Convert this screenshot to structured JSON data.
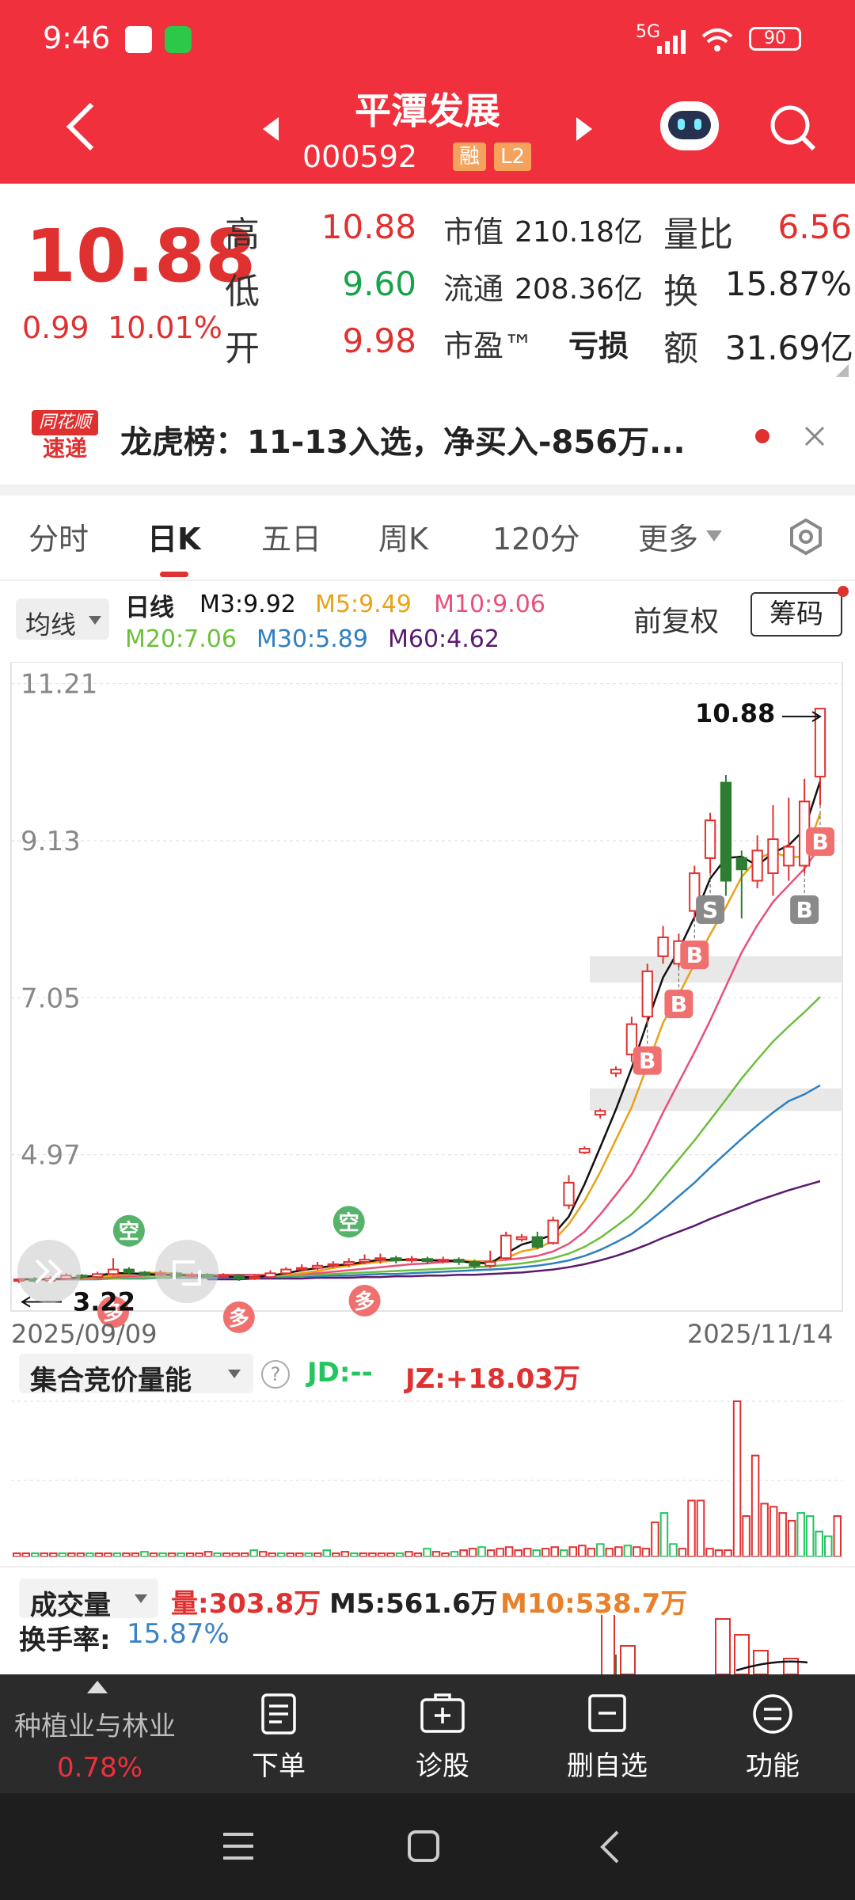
{
  "status_bar": {
    "time": "9:46",
    "network": "5G",
    "battery": "90"
  },
  "header": {
    "title": "平潭发展",
    "code": "000592",
    "badges": [
      "融",
      "L2"
    ]
  },
  "quote": {
    "price": "10.88",
    "change": "0.99",
    "change_pct": "10.01%",
    "high_label": "高",
    "high": "10.88",
    "low_label": "低",
    "low": "9.60",
    "open_label": "开",
    "open": "9.98",
    "mktcap_label": "市值",
    "mktcap": "210.18亿",
    "float_label": "流通",
    "float": "208.36亿",
    "pe_label": "市盈™",
    "pe": "亏损",
    "vol_ratio_label": "量比",
    "vol_ratio": "6.56",
    "turnover_label": "换",
    "turnover": "15.87%",
    "amount_label": "额",
    "amount": "31.69亿"
  },
  "news": {
    "logo_line1": "同花顺",
    "logo_line2": "速递",
    "text": "龙虎榜：11-13入选，净买入-856万..."
  },
  "tabs": [
    "分时",
    "日K",
    "五日",
    "周K",
    "120分",
    "更多"
  ],
  "active_tab": "日K",
  "ma": {
    "type_label": "均线",
    "period_label": "日线",
    "m3": "M3:9.92",
    "m5": "M5:9.49",
    "m10": "M10:9.06",
    "m20": "M20:7.06",
    "m30": "M30:5.89",
    "m60": "M60:4.62",
    "adjust_label": "前复权",
    "chips_label": "筹码"
  },
  "chart_data": {
    "type": "candlestick",
    "y_ticks": [
      "11.21",
      "9.13",
      "7.05",
      "4.97"
    ],
    "ylim": [
      2.9,
      11.5
    ],
    "x_start": "2025/09/09",
    "x_end": "2025/11/14",
    "max_label": "10.88",
    "min_label": "3.22",
    "candles": [
      [
        3.3,
        3.32,
        3.27,
        3.34
      ],
      [
        3.32,
        3.3,
        3.28,
        3.35
      ],
      [
        3.3,
        3.33,
        3.28,
        3.36
      ],
      [
        3.33,
        3.37,
        3.31,
        3.4
      ],
      [
        3.37,
        3.35,
        3.33,
        3.39
      ],
      [
        3.35,
        3.39,
        3.33,
        3.42
      ],
      [
        3.39,
        3.45,
        3.37,
        3.6
      ],
      [
        3.45,
        3.41,
        3.38,
        3.48
      ],
      [
        3.41,
        3.38,
        3.36,
        3.43
      ],
      [
        3.38,
        3.4,
        3.36,
        3.44
      ],
      [
        3.4,
        3.36,
        3.34,
        3.42
      ],
      [
        3.36,
        3.38,
        3.34,
        3.41
      ],
      [
        3.38,
        3.35,
        3.32,
        3.4
      ],
      [
        3.35,
        3.37,
        3.33,
        3.4
      ],
      [
        3.37,
        3.33,
        3.3,
        3.39
      ],
      [
        3.33,
        3.35,
        3.31,
        3.38
      ],
      [
        3.35,
        3.4,
        3.33,
        3.44
      ],
      [
        3.4,
        3.45,
        3.38,
        3.48
      ],
      [
        3.45,
        3.47,
        3.42,
        3.52
      ],
      [
        3.47,
        3.5,
        3.44,
        3.55
      ],
      [
        3.5,
        3.52,
        3.47,
        3.56
      ],
      [
        3.52,
        3.55,
        3.48,
        3.6
      ],
      [
        3.55,
        3.58,
        3.52,
        3.65
      ],
      [
        3.58,
        3.6,
        3.53,
        3.66
      ],
      [
        3.6,
        3.57,
        3.53,
        3.63
      ],
      [
        3.57,
        3.59,
        3.54,
        3.63
      ],
      [
        3.59,
        3.56,
        3.52,
        3.62
      ],
      [
        3.56,
        3.58,
        3.53,
        3.62
      ],
      [
        3.58,
        3.55,
        3.51,
        3.61
      ],
      [
        3.55,
        3.5,
        3.46,
        3.58
      ],
      [
        3.5,
        3.55,
        3.47,
        3.7
      ],
      [
        3.6,
        3.9,
        3.58,
        3.95
      ],
      [
        3.85,
        3.88,
        3.82,
        3.92
      ],
      [
        3.88,
        3.75,
        3.72,
        3.95
      ],
      [
        3.8,
        4.1,
        3.78,
        4.15
      ],
      [
        4.3,
        4.6,
        4.25,
        4.7
      ],
      [
        5.0,
        5.05,
        4.98,
        5.08
      ],
      [
        5.5,
        5.55,
        5.45,
        5.58
      ],
      [
        6.05,
        6.1,
        6.0,
        6.14
      ],
      [
        6.3,
        6.7,
        6.2,
        6.8
      ],
      [
        6.8,
        7.4,
        6.7,
        7.5
      ],
      [
        7.6,
        7.85,
        7.5,
        8.0
      ],
      [
        7.5,
        7.8,
        7.45,
        7.9
      ],
      [
        8.2,
        8.7,
        8.1,
        8.8
      ],
      [
        8.9,
        9.4,
        8.7,
        9.5
      ],
      [
        9.9,
        8.6,
        8.4,
        10.0
      ],
      [
        8.9,
        8.75,
        8.1,
        9.0
      ],
      [
        8.6,
        9.0,
        8.5,
        9.2
      ],
      [
        8.7,
        9.15,
        8.4,
        9.6
      ],
      [
        8.8,
        9.05,
        8.6,
        9.7
      ],
      [
        8.8,
        9.65,
        8.7,
        9.95
      ],
      [
        9.98,
        10.88,
        9.6,
        10.88
      ]
    ],
    "ma_lines": {
      "m3": [
        3.32,
        3.32,
        3.32,
        3.33,
        3.35,
        3.37,
        3.4,
        3.4,
        3.39,
        3.38,
        3.38,
        3.37,
        3.36,
        3.36,
        3.35,
        3.35,
        3.37,
        3.4,
        3.44,
        3.47,
        3.5,
        3.52,
        3.55,
        3.58,
        3.58,
        3.58,
        3.57,
        3.57,
        3.56,
        3.54,
        3.53,
        3.66,
        3.78,
        3.84,
        3.91,
        4.15,
        4.58,
        5.07,
        5.57,
        6.12,
        6.73,
        7.32,
        7.68,
        8.12,
        8.63,
        8.9,
        8.92,
        8.8,
        8.97,
        9.07,
        9.28,
        9.92
      ],
      "m5": [
        3.32,
        3.32,
        3.32,
        3.33,
        3.34,
        3.35,
        3.37,
        3.39,
        3.4,
        3.41,
        3.39,
        3.38,
        3.37,
        3.37,
        3.36,
        3.36,
        3.37,
        3.38,
        3.4,
        3.43,
        3.47,
        3.5,
        3.53,
        3.55,
        3.57,
        3.58,
        3.58,
        3.57,
        3.57,
        3.56,
        3.55,
        3.6,
        3.69,
        3.73,
        3.83,
        4.05,
        4.36,
        4.74,
        5.17,
        5.6,
        6.15,
        6.72,
        7.09,
        7.5,
        7.89,
        8.25,
        8.65,
        8.89,
        8.98,
        8.91,
        8.92,
        9.49
      ],
      "m10": [
        3.32,
        3.32,
        3.32,
        3.32,
        3.33,
        3.34,
        3.35,
        3.36,
        3.37,
        3.38,
        3.38,
        3.38,
        3.38,
        3.38,
        3.38,
        3.38,
        3.38,
        3.38,
        3.39,
        3.4,
        3.42,
        3.44,
        3.46,
        3.48,
        3.5,
        3.52,
        3.53,
        3.55,
        3.56,
        3.56,
        3.56,
        3.58,
        3.6,
        3.63,
        3.69,
        3.79,
        3.95,
        4.18,
        4.44,
        4.71,
        5.1,
        5.53,
        5.93,
        6.33,
        6.75,
        7.2,
        7.65,
        8.01,
        8.32,
        8.54,
        8.76,
        9.06
      ],
      "m20": [
        3.32,
        3.32,
        3.32,
        3.32,
        3.32,
        3.33,
        3.33,
        3.34,
        3.34,
        3.35,
        3.35,
        3.35,
        3.35,
        3.36,
        3.36,
        3.36,
        3.36,
        3.37,
        3.37,
        3.38,
        3.39,
        3.4,
        3.41,
        3.42,
        3.43,
        3.44,
        3.45,
        3.46,
        3.47,
        3.48,
        3.49,
        3.51,
        3.53,
        3.56,
        3.6,
        3.66,
        3.75,
        3.87,
        4.02,
        4.18,
        4.4,
        4.66,
        4.91,
        5.16,
        5.43,
        5.7,
        5.98,
        6.23,
        6.47,
        6.67,
        6.86,
        7.06
      ],
      "m30": [
        3.32,
        3.32,
        3.32,
        3.32,
        3.32,
        3.32,
        3.33,
        3.33,
        3.33,
        3.34,
        3.34,
        3.34,
        3.34,
        3.34,
        3.35,
        3.35,
        3.35,
        3.35,
        3.36,
        3.36,
        3.37,
        3.37,
        3.38,
        3.39,
        3.39,
        3.4,
        3.41,
        3.42,
        3.43,
        3.44,
        3.45,
        3.46,
        3.48,
        3.5,
        3.53,
        3.57,
        3.63,
        3.71,
        3.81,
        3.92,
        4.07,
        4.24,
        4.42,
        4.6,
        4.8,
        4.99,
        5.18,
        5.36,
        5.53,
        5.68,
        5.77,
        5.89
      ],
      "m60": [
        3.3,
        3.3,
        3.3,
        3.3,
        3.31,
        3.31,
        3.31,
        3.31,
        3.31,
        3.32,
        3.32,
        3.32,
        3.32,
        3.32,
        3.32,
        3.33,
        3.33,
        3.33,
        3.33,
        3.34,
        3.34,
        3.34,
        3.35,
        3.35,
        3.36,
        3.36,
        3.37,
        3.37,
        3.38,
        3.38,
        3.39,
        3.4,
        3.41,
        3.43,
        3.45,
        3.48,
        3.52,
        3.57,
        3.63,
        3.7,
        3.78,
        3.87,
        3.95,
        4.03,
        4.12,
        4.2,
        4.28,
        4.36,
        4.43,
        4.5,
        4.56,
        4.62
      ]
    },
    "markers": [
      {
        "label": "空",
        "i": 7,
        "pos": "above"
      },
      {
        "label": "多",
        "i": 6,
        "pos": "below"
      },
      {
        "label": "多",
        "i": 14,
        "pos": "below"
      },
      {
        "label": "空",
        "i": 21,
        "pos": "above"
      },
      {
        "label": "多",
        "i": 22,
        "pos": "below"
      },
      {
        "label": "B",
        "i": 40,
        "pos": "below"
      },
      {
        "label": "B",
        "i": 42,
        "pos": "below"
      },
      {
        "label": "B",
        "i": 43,
        "pos": "below"
      },
      {
        "label": "S",
        "i": 44,
        "pos": "below"
      },
      {
        "label": "B",
        "i": 50,
        "pos": "below"
      },
      {
        "label": "B",
        "i": 51,
        "pos": "below"
      }
    ],
    "auction_volume": [
      [
        0.02,
        "r"
      ],
      [
        0.02,
        "r"
      ],
      [
        0.02,
        "g"
      ],
      [
        0.02,
        "r"
      ],
      [
        0.02,
        "r"
      ],
      [
        0.02,
        "g"
      ],
      [
        0.02,
        "r"
      ],
      [
        0.02,
        "r"
      ],
      [
        0.02,
        "g"
      ],
      [
        0.02,
        "r"
      ],
      [
        0.02,
        "r"
      ],
      [
        0.02,
        "g"
      ],
      [
        0.02,
        "r"
      ],
      [
        0.02,
        "r"
      ],
      [
        0.03,
        "g"
      ],
      [
        0.02,
        "r"
      ],
      [
        0.02,
        "g"
      ],
      [
        0.02,
        "r"
      ],
      [
        0.02,
        "g"
      ],
      [
        0.02,
        "r"
      ],
      [
        0.02,
        "r"
      ],
      [
        0.03,
        "r"
      ],
      [
        0.02,
        "g"
      ],
      [
        0.02,
        "r"
      ],
      [
        0.02,
        "r"
      ],
      [
        0.02,
        "r"
      ],
      [
        0.04,
        "g"
      ],
      [
        0.03,
        "r"
      ],
      [
        0.02,
        "r"
      ],
      [
        0.02,
        "g"
      ],
      [
        0.02,
        "r"
      ],
      [
        0.02,
        "r"
      ],
      [
        0.02,
        "g"
      ],
      [
        0.02,
        "r"
      ],
      [
        0.04,
        "g"
      ],
      [
        0.02,
        "r"
      ],
      [
        0.03,
        "r"
      ],
      [
        0.02,
        "g"
      ],
      [
        0.02,
        "r"
      ],
      [
        0.02,
        "r"
      ],
      [
        0.02,
        "r"
      ],
      [
        0.02,
        "r"
      ],
      [
        0.02,
        "g"
      ],
      [
        0.03,
        "r"
      ],
      [
        0.02,
        "r"
      ],
      [
        0.05,
        "g"
      ],
      [
        0.03,
        "r"
      ],
      [
        0.02,
        "r"
      ],
      [
        0.03,
        "g"
      ],
      [
        0.04,
        "r"
      ],
      [
        0.05,
        "r"
      ],
      [
        0.06,
        "g"
      ],
      [
        0.04,
        "r"
      ],
      [
        0.05,
        "r"
      ],
      [
        0.06,
        "r"
      ],
      [
        0.04,
        "r"
      ],
      [
        0.05,
        "r"
      ],
      [
        0.04,
        "g"
      ],
      [
        0.05,
        "r"
      ],
      [
        0.06,
        "r"
      ],
      [
        0.04,
        "g"
      ],
      [
        0.06,
        "r"
      ],
      [
        0.07,
        "r"
      ],
      [
        0.05,
        "r"
      ],
      [
        0.08,
        "g"
      ],
      [
        0.05,
        "r"
      ],
      [
        0.06,
        "r"
      ],
      [
        0.07,
        "g"
      ],
      [
        0.06,
        "r"
      ],
      [
        0.05,
        "r"
      ],
      [
        0.22,
        "r"
      ],
      [
        0.28,
        "g"
      ],
      [
        0.08,
        "g"
      ],
      [
        0.05,
        "r"
      ],
      [
        0.36,
        "r"
      ],
      [
        0.36,
        "r"
      ],
      [
        0.05,
        "r"
      ],
      [
        0.04,
        "r"
      ],
      [
        0.04,
        "r"
      ],
      [
        1.0,
        "r"
      ],
      [
        0.26,
        "r"
      ],
      [
        0.65,
        "r"
      ],
      [
        0.34,
        "r"
      ],
      [
        0.32,
        "r"
      ],
      [
        0.28,
        "r"
      ],
      [
        0.23,
        "r"
      ],
      [
        0.28,
        "g"
      ],
      [
        0.26,
        "g"
      ],
      [
        0.16,
        "g"
      ],
      [
        0.13,
        "g"
      ],
      [
        0.26,
        "r"
      ]
    ],
    "volume_tail": [
      [
        0.12,
        "g"
      ],
      [
        0.18,
        "r"
      ],
      [
        0.35,
        "r"
      ],
      [
        0.25,
        "r"
      ],
      [
        0.15,
        "r"
      ],
      [
        0.1,
        "r"
      ]
    ]
  },
  "auction_panel": {
    "title": "集合竞价量能",
    "jd": "JD:--",
    "jz": "JZ:+18.03万"
  },
  "volume_panel": {
    "title": "成交量",
    "vol": "量:303.8万",
    "m5": "M5:561.6万",
    "m10": "M10:538.7万",
    "turn_label": "换手率:",
    "turn": "15.87%"
  },
  "bottom_bar": {
    "sector": "种植业与林业",
    "sector_pct": "0.78%",
    "items": [
      "下单",
      "诊股",
      "删自选",
      "功能"
    ]
  },
  "colors": {
    "brand": "#f0303c",
    "up": "#e03131",
    "down": "#16a34a",
    "m3": "#111111",
    "m5": "#e8a317",
    "m10": "#e8507a",
    "m20": "#6cbf3a",
    "m30": "#2f7fc1",
    "m60": "#5a1a6e"
  }
}
